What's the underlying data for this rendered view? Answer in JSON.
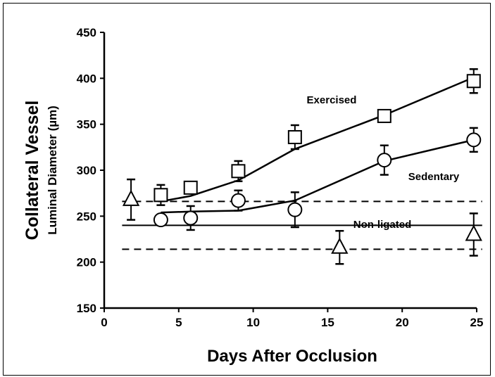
{
  "chart_data": {
    "type": "scatter",
    "title": "",
    "ylabel_line1": "Collateral Vessel",
    "ylabel_line2": "Luminal Diameter (µm)",
    "xlabel": "Days After Occlusion",
    "xlim": [
      0,
      25
    ],
    "ylim": [
      150,
      450
    ],
    "xticks": [
      0,
      5,
      10,
      15,
      20,
      25
    ],
    "yticks": [
      150,
      200,
      250,
      300,
      350,
      400,
      450
    ],
    "grid": false,
    "series": [
      {
        "name": "Exercised",
        "marker": "square",
        "x": [
          3.8,
          5.8,
          9.0,
          12.8,
          18.8,
          24.8
        ],
        "y": [
          273,
          281,
          299,
          336,
          359,
          397
        ],
        "err": [
          11,
          6,
          11,
          13,
          5,
          13
        ],
        "fit": [
          [
            3.8,
            266
          ],
          [
            5.8,
            272
          ],
          [
            9.0,
            289
          ],
          [
            12.8,
            323
          ],
          [
            18.8,
            360
          ],
          [
            24.8,
            401
          ]
        ]
      },
      {
        "name": "Sedentary",
        "marker": "circle",
        "x": [
          3.8,
          5.8,
          9.0,
          12.8,
          18.8,
          24.8
        ],
        "y": [
          246,
          248,
          267,
          257,
          311,
          333
        ],
        "err": [
          5,
          13,
          11,
          19,
          16,
          13
        ],
        "fit": [
          [
            3.8,
            254
          ],
          [
            5.8,
            255
          ],
          [
            9.0,
            256
          ],
          [
            12.8,
            267
          ],
          [
            18.8,
            310
          ],
          [
            24.8,
            333
          ]
        ]
      },
      {
        "name": "Non-ligated",
        "marker": "triangle",
        "x": [
          1.8,
          15.8,
          24.8
        ],
        "y": [
          268,
          216,
          230
        ],
        "err": [
          22,
          18,
          23
        ],
        "mean": 240,
        "band": [
          214,
          266
        ]
      }
    ]
  }
}
